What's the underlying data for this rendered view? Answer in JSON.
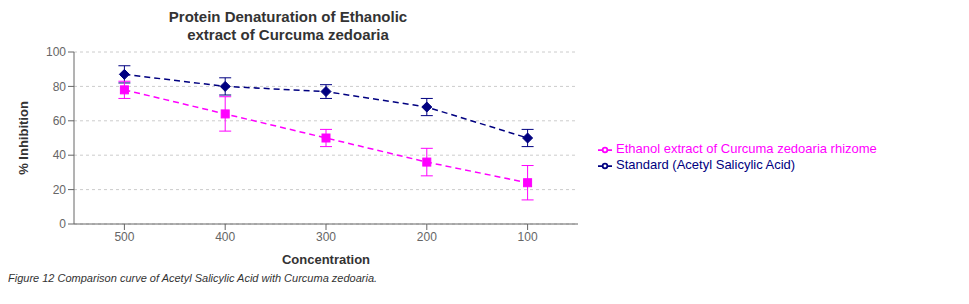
{
  "chart_data": {
    "type": "line",
    "title": "Protein Denaturation of Ethanolic\nextract of Curcuma zedoaria",
    "x_label": "Concentration",
    "y_label": "% Inhibition",
    "x": [
      500,
      400,
      300,
      200,
      100
    ],
    "series": [
      {
        "name": "Standard (Acetyl Salicylic Acid)",
        "color": "#000080",
        "values": [
          87,
          80,
          77,
          68,
          50
        ],
        "errors": [
          5,
          5,
          4,
          5,
          5
        ],
        "marker": "diamond",
        "line_style": "dashed"
      },
      {
        "name": "Ethanol extract of Curcuma zedoaria rhizome",
        "color": "#FF00FF",
        "values": [
          78,
          64,
          50,
          36,
          24
        ],
        "errors": [
          5,
          10,
          5,
          8,
          10
        ],
        "marker": "square",
        "line_style": "dashed"
      }
    ],
    "xlim": [
      550,
      50
    ],
    "xticks": [
      500,
      400,
      300,
      200,
      100
    ],
    "ylim": [
      0,
      100
    ],
    "yticks": [
      0,
      20,
      40,
      60,
      80,
      100
    ],
    "grid": true,
    "legend": "right",
    "annotations": [
      "Figure 12 Comparison curve of Acetyl Salicylic Acid with Curcuma zedoaria."
    ]
  }
}
